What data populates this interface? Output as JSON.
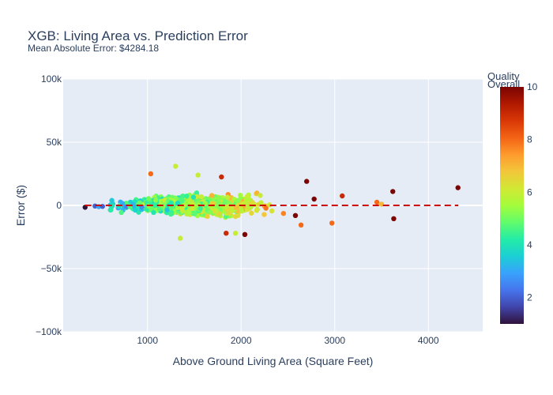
{
  "chart_data": {
    "type": "scatter",
    "title": "XGB: Living Area vs. Prediction Error",
    "subtitle": "Mean Absolute Error: $4284.18",
    "xlabel": "Above Ground Living Area (Square Feet)",
    "ylabel": "Error ($)",
    "xlim": [
      100,
      4580
    ],
    "ylim": [
      -100000,
      100000
    ],
    "x_ticks": [
      1000,
      2000,
      3000,
      4000
    ],
    "x_tick_labels": [
      "1000",
      "2000",
      "3000",
      "4000"
    ],
    "y_ticks": [
      -100000,
      -50000,
      0,
      50000,
      100000
    ],
    "y_tick_labels": [
      "−100k",
      "−50k",
      "0",
      "50k",
      "100k"
    ],
    "reference_line": {
      "y": 0,
      "x_range": [
        334,
        4320
      ],
      "style": "dashed",
      "color": "#cc0000"
    },
    "colorbar": {
      "title_lines": [
        "Overall",
        "Quality"
      ],
      "range": [
        1,
        10
      ],
      "ticks": [
        2,
        4,
        6,
        8,
        10
      ],
      "tick_labels": [
        "2",
        "4",
        "6",
        "8",
        "10"
      ],
      "colorscale": [
        "#30123b",
        "#4145ab",
        "#4675ed",
        "#39a2fc",
        "#1bcfd4",
        "#24eca6",
        "#61fc6c",
        "#a4fc3b",
        "#d1e834",
        "#f3c63a",
        "#fe9b2d",
        "#f36315",
        "#d93806",
        "#b11901",
        "#7a0402"
      ]
    },
    "outliers": [
      {
        "x": 334,
        "y": -1500,
        "q": 1
      },
      {
        "x": 440,
        "y": -500,
        "q": 2
      },
      {
        "x": 480,
        "y": -1000,
        "q": 3
      },
      {
        "x": 520,
        "y": -800,
        "q": 2
      },
      {
        "x": 1035,
        "y": 25000,
        "q": 8
      },
      {
        "x": 1300,
        "y": 31000,
        "q": 6
      },
      {
        "x": 1350,
        "y": -26000,
        "q": 6
      },
      {
        "x": 1540,
        "y": 24000,
        "q": 6
      },
      {
        "x": 1790,
        "y": 22500,
        "q": 9
      },
      {
        "x": 1840,
        "y": -22000,
        "q": 9
      },
      {
        "x": 2040,
        "y": -23000,
        "q": 10
      },
      {
        "x": 1940,
        "y": -22000,
        "q": 6
      },
      {
        "x": 2700,
        "y": 19000,
        "q": 10
      },
      {
        "x": 2640,
        "y": -15500,
        "q": 8
      },
      {
        "x": 2580,
        "y": -8000,
        "q": 10
      },
      {
        "x": 2780,
        "y": 5000,
        "q": 10
      },
      {
        "x": 2970,
        "y": -14000,
        "q": 8
      },
      {
        "x": 3080,
        "y": 7500,
        "q": 9
      },
      {
        "x": 3450,
        "y": 2500,
        "q": 8
      },
      {
        "x": 3500,
        "y": 1000,
        "q": 7
      },
      {
        "x": 3620,
        "y": 11000,
        "q": 10
      },
      {
        "x": 3630,
        "y": -10500,
        "q": 10
      },
      {
        "x": 4316,
        "y": 14000,
        "q": 10
      }
    ],
    "bulk": {
      "count": 1380,
      "seed": 20240521
    }
  }
}
